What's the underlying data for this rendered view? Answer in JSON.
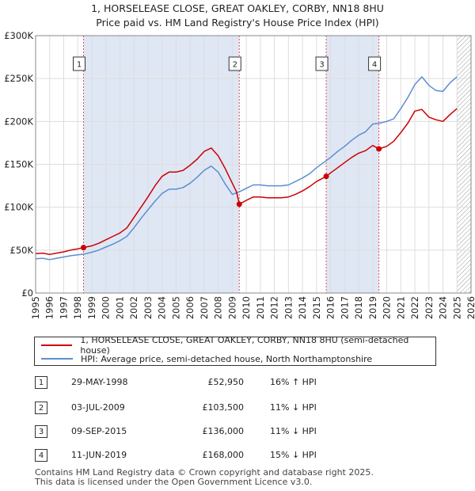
{
  "title_line1": "1, HORSELEASE CLOSE, GREAT OAKLEY, CORBY, NN18 8HU",
  "title_line2": "Price paid vs. HM Land Registry's House Price Index (HPI)",
  "colors": {
    "property": "#cc0000",
    "hpi": "#5b8ed0",
    "shade": "#dfe7f5",
    "grid": "#dddddd",
    "marker_line": "#e05050"
  },
  "chart_data": {
    "type": "line",
    "title": "Price paid vs. HM Land Registry's House Price Index (HPI)",
    "xlabel": "",
    "ylabel": "",
    "xlim": [
      1995,
      2026
    ],
    "ylim": [
      0,
      300000
    ],
    "x_ticks": [
      1995,
      1996,
      1997,
      1998,
      1999,
      2000,
      2001,
      2002,
      2003,
      2004,
      2005,
      2006,
      2007,
      2008,
      2009,
      2010,
      2011,
      2012,
      2013,
      2014,
      2015,
      2016,
      2017,
      2018,
      2019,
      2020,
      2021,
      2022,
      2023,
      2024,
      2025,
      2026
    ],
    "y_ticks": [
      0,
      50000,
      100000,
      150000,
      200000,
      250000,
      300000
    ],
    "y_tick_labels": [
      "£0",
      "£50K",
      "£100K",
      "£150K",
      "£200K",
      "£250K",
      "£300K"
    ],
    "grid": true,
    "shaded_spans": [
      [
        1998.41,
        2009.5
      ],
      [
        2015.69,
        2019.44
      ]
    ],
    "hatched_from": 2025.0,
    "series": [
      {
        "name": "1, HORSELEASE CLOSE, GREAT OAKLEY, CORBY, NN18 8HU (semi-detached house)",
        "x": [
          1995.0,
          1995.5,
          1996.0,
          1996.5,
          1997.0,
          1997.5,
          1998.0,
          1998.41,
          1999.0,
          1999.5,
          2000.0,
          2000.5,
          2001.0,
          2001.5,
          2002.0,
          2002.5,
          2003.0,
          2003.5,
          2004.0,
          2004.5,
          2005.0,
          2005.5,
          2006.0,
          2006.5,
          2007.0,
          2007.5,
          2008.0,
          2008.5,
          2009.0,
          2009.3,
          2009.5,
          2010.0,
          2010.5,
          2011.0,
          2011.5,
          2012.0,
          2012.5,
          2013.0,
          2013.5,
          2014.0,
          2014.5,
          2015.0,
          2015.69,
          2016.0,
          2016.5,
          2017.0,
          2017.5,
          2018.0,
          2018.5,
          2019.0,
          2019.44,
          2020.0,
          2020.5,
          2021.0,
          2021.5,
          2022.0,
          2022.5,
          2023.0,
          2023.5,
          2024.0,
          2024.5,
          2025.0
        ],
        "values": [
          46000,
          46500,
          45000,
          46500,
          48000,
          50000,
          51500,
          52950,
          55000,
          58000,
          62000,
          66000,
          70000,
          76000,
          88000,
          100000,
          112000,
          125000,
          136000,
          141000,
          141000,
          143000,
          149000,
          156000,
          165000,
          169000,
          160000,
          145000,
          128000,
          118000,
          103500,
          108000,
          112000,
          112000,
          111000,
          111000,
          111000,
          112000,
          115000,
          119000,
          124000,
          130000,
          136000,
          140000,
          146000,
          152000,
          158000,
          163000,
          166000,
          172000,
          168000,
          171000,
          177000,
          187000,
          198000,
          212000,
          214000,
          205000,
          202000,
          200000,
          208000,
          215000
        ]
      },
      {
        "name": "HPI: Average price, semi-detached house, North Northamptonshire",
        "x": [
          1995.0,
          1995.5,
          1996.0,
          1996.5,
          1997.0,
          1997.5,
          1998.0,
          1998.5,
          1999.0,
          1999.5,
          2000.0,
          2000.5,
          2001.0,
          2001.5,
          2002.0,
          2002.5,
          2003.0,
          2003.5,
          2004.0,
          2004.5,
          2005.0,
          2005.5,
          2006.0,
          2006.5,
          2007.0,
          2007.5,
          2008.0,
          2008.5,
          2009.0,
          2009.5,
          2010.0,
          2010.5,
          2011.0,
          2011.5,
          2012.0,
          2012.5,
          2013.0,
          2013.5,
          2014.0,
          2014.5,
          2015.0,
          2015.5,
          2016.0,
          2016.5,
          2017.0,
          2017.5,
          2018.0,
          2018.5,
          2019.0,
          2019.5,
          2020.0,
          2020.5,
          2021.0,
          2021.5,
          2022.0,
          2022.5,
          2023.0,
          2023.5,
          2024.0,
          2024.5,
          2025.0
        ],
        "values": [
          40000,
          40500,
          39000,
          40500,
          42000,
          43500,
          44500,
          45500,
          47500,
          50000,
          53500,
          57000,
          61000,
          66000,
          76000,
          87000,
          97000,
          107000,
          116000,
          121000,
          121000,
          123000,
          128000,
          135000,
          143000,
          148000,
          141000,
          127000,
          115000,
          118000,
          122000,
          126000,
          126000,
          125000,
          125000,
          125000,
          126000,
          130000,
          134000,
          139000,
          146000,
          152000,
          158000,
          165000,
          171000,
          178000,
          184000,
          188000,
          197000,
          198000,
          200000,
          203000,
          215000,
          228000,
          243000,
          252000,
          242000,
          236000,
          235000,
          245000,
          252000
        ]
      }
    ],
    "markers": [
      {
        "label": "1",
        "x": 1998.41,
        "value": 52950
      },
      {
        "label": "2",
        "x": 2009.5,
        "value": 103500
      },
      {
        "label": "3",
        "x": 2015.69,
        "value": 136000
      },
      {
        "label": "4",
        "x": 2019.44,
        "value": 168000
      }
    ]
  },
  "legend": {
    "property_label": "1, HORSELEASE CLOSE, GREAT OAKLEY, CORBY, NN18 8HU (semi-detached house)",
    "hpi_label": "HPI: Average price, semi-detached house, North Northamptonshire"
  },
  "transactions": [
    {
      "num": "1",
      "date": "29-MAY-1998",
      "price": "£52,950",
      "hpi": "16% ↑ HPI"
    },
    {
      "num": "2",
      "date": "03-JUL-2009",
      "price": "£103,500",
      "hpi": "11% ↓ HPI"
    },
    {
      "num": "3",
      "date": "09-SEP-2015",
      "price": "£136,000",
      "hpi": "11% ↓ HPI"
    },
    {
      "num": "4",
      "date": "11-JUN-2019",
      "price": "£168,000",
      "hpi": "15% ↓ HPI"
    }
  ],
  "footer": {
    "line1": "Contains HM Land Registry data © Crown copyright and database right 2025.",
    "line2": "This data is licensed under the Open Government Licence v3.0."
  }
}
